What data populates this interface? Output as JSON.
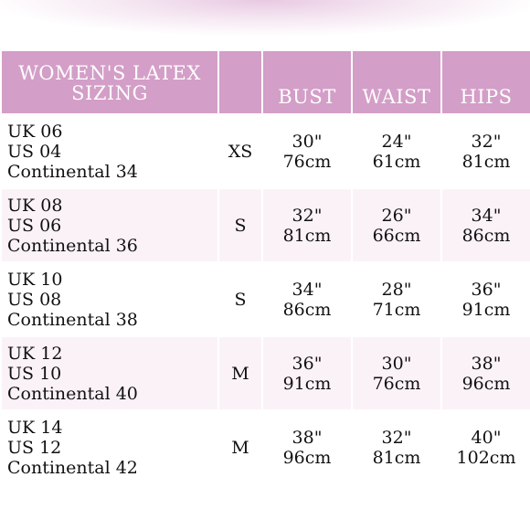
{
  "header": {
    "title_line1": "WOMEN'S LATEX",
    "title_line2": "SIZING",
    "size_col": "",
    "bust": "BUST",
    "waist": "WAIST",
    "hips": "HIPS"
  },
  "colors": {
    "header_bg": "#d39ec7",
    "row_tint": "#fbf2f8"
  },
  "rows": [
    {
      "uk": "UK 06",
      "us": "US 04",
      "continental": "Continental 34",
      "size": "XS",
      "bust_in": "30\"",
      "bust_cm": "76cm",
      "waist_in": "24\"",
      "waist_cm": "61cm",
      "hips_in": "32\"",
      "hips_cm": "81cm"
    },
    {
      "uk": "UK 08",
      "us": "US 06",
      "continental": "Continental 36",
      "size": "S",
      "bust_in": "32\"",
      "bust_cm": "81cm",
      "waist_in": "26\"",
      "waist_cm": "66cm",
      "hips_in": "34\"",
      "hips_cm": "86cm"
    },
    {
      "uk": "UK 10",
      "us": "US 08",
      "continental": "Continental 38",
      "size": "S",
      "bust_in": "34\"",
      "bust_cm": "86cm",
      "waist_in": "28\"",
      "waist_cm": "71cm",
      "hips_in": "36\"",
      "hips_cm": "91cm"
    },
    {
      "uk": "UK 12",
      "us": "US 10",
      "continental": "Continental 40",
      "size": "M",
      "bust_in": "36\"",
      "bust_cm": "91cm",
      "waist_in": "30\"",
      "waist_cm": "76cm",
      "hips_in": "38\"",
      "hips_cm": "96cm"
    },
    {
      "uk": "UK 14",
      "us": "US 12",
      "continental": "Continental 42",
      "size": "M",
      "bust_in": "38\"",
      "bust_cm": "96cm",
      "waist_in": "32\"",
      "waist_cm": "81cm",
      "hips_in": "40\"",
      "hips_cm": "102cm"
    }
  ]
}
